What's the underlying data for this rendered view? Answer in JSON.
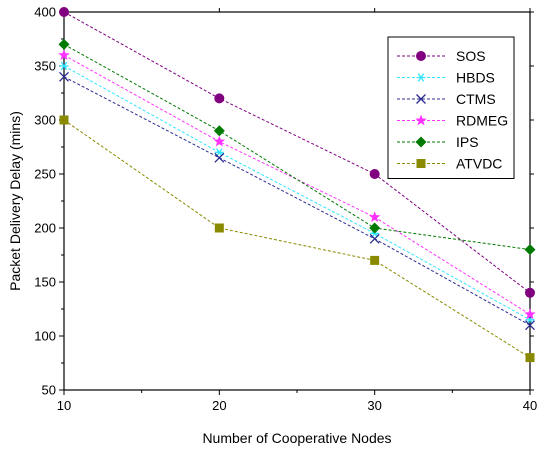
{
  "chart_data": {
    "type": "line",
    "xlabel": "Number of Cooperative Nodes",
    "ylabel": "Packet Delivery Delay (mins)",
    "xlim": [
      10,
      40
    ],
    "ylim": [
      50,
      400
    ],
    "xticks": [
      10,
      20,
      30,
      40
    ],
    "yticks": [
      50,
      100,
      150,
      200,
      250,
      300,
      350,
      400
    ],
    "grid": false,
    "legend_position": "top-right",
    "x": [
      10,
      20,
      30,
      40
    ],
    "series": [
      {
        "name": "SOS",
        "values": [
          400,
          320,
          250,
          140
        ],
        "color": "#800080",
        "marker": "circle"
      },
      {
        "name": "HBDS",
        "values": [
          350,
          270,
          195,
          115
        ],
        "color": "#33e5ff",
        "marker": "asterisk"
      },
      {
        "name": "CTMS",
        "values": [
          340,
          265,
          190,
          110
        ],
        "color": "#2b2b90",
        "marker": "x"
      },
      {
        "name": "RDMEG",
        "values": [
          360,
          280,
          210,
          120
        ],
        "color": "#ff33ff",
        "marker": "star"
      },
      {
        "name": "IPS",
        "values": [
          370,
          290,
          200,
          180
        ],
        "color": "#007a00",
        "marker": "diamond"
      },
      {
        "name": "ATVDC",
        "values": [
          300,
          200,
          170,
          80
        ],
        "color": "#8a8a00",
        "marker": "square"
      }
    ]
  }
}
